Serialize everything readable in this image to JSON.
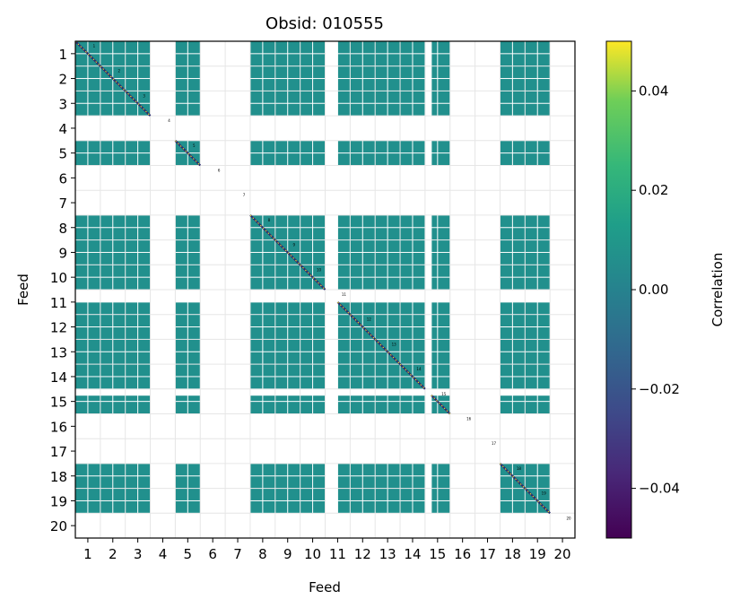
{
  "chart_data": {
    "type": "heatmap",
    "title": "Obsid: 010555",
    "xlabel": "Feed",
    "ylabel": "Feed",
    "feeds": [
      1,
      2,
      3,
      4,
      5,
      6,
      7,
      8,
      9,
      10,
      11,
      12,
      13,
      14,
      15,
      16,
      17,
      18,
      19,
      20
    ],
    "tick_labels": [
      "1",
      "2",
      "3",
      "4",
      "5",
      "6",
      "7",
      "8",
      "9",
      "10",
      "11",
      "12",
      "13",
      "14",
      "15",
      "16",
      "17",
      "18",
      "19",
      "20"
    ],
    "active_feeds": [
      1,
      2,
      3,
      5,
      8,
      9,
      10,
      11,
      12,
      13,
      14,
      15,
      18,
      19
    ],
    "missing_leading_fraction": {
      "11": 0.5,
      "15": 0.25
    },
    "bands_per_feed": 2,
    "off_diagonal_value": 0.0,
    "diagonal_value": "alternating -0.05 / 0.05",
    "colorbar": {
      "label": "Correlation",
      "colormap": "viridis",
      "range": [
        -0.05,
        0.05
      ],
      "ticks": [
        -0.04,
        -0.02,
        0.0,
        0.02,
        0.04
      ],
      "tick_labels": [
        "−0.04",
        "−0.02",
        "0.00",
        "0.02",
        "0.04"
      ]
    },
    "grid": true
  }
}
